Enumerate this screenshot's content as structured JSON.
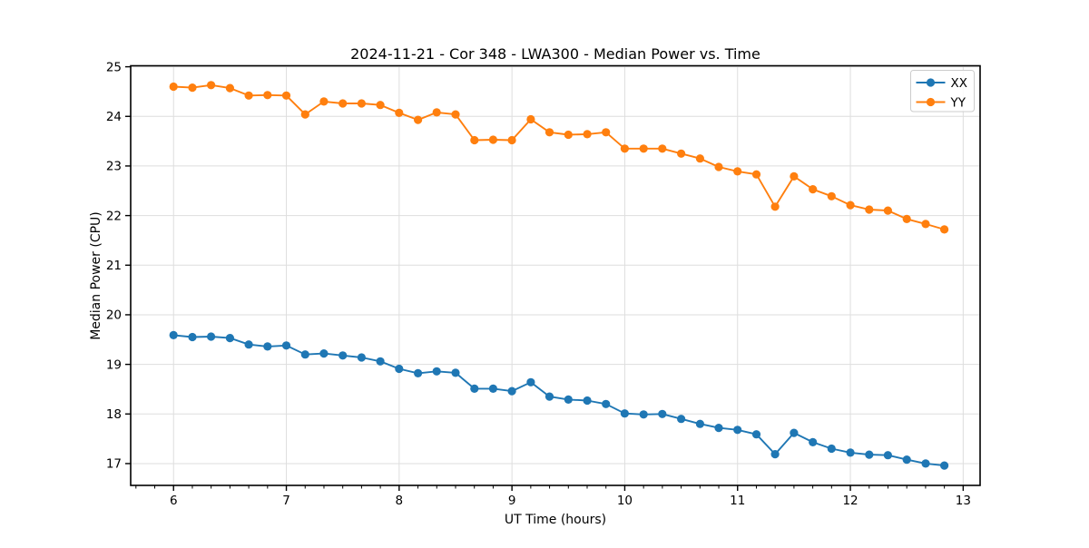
{
  "chart_data": {
    "type": "line",
    "title": "2024-11-21 - Cor 348 - LWA300 - Median Power vs. Time",
    "xlabel": "UT Time (hours)",
    "ylabel": "Median Power (CPU)",
    "xlim": [
      5.62,
      13.15
    ],
    "ylim": [
      16.56,
      25.02
    ],
    "x_ticks": [
      6,
      7,
      8,
      9,
      10,
      11,
      12,
      13
    ],
    "y_ticks": [
      17,
      18,
      19,
      20,
      21,
      22,
      23,
      24,
      25
    ],
    "x_minor_per_major": 6,
    "grid": true,
    "grid_color": "#dedede",
    "legend_position": "upper right",
    "x": [
      6.0,
      6.167,
      6.333,
      6.5,
      6.667,
      6.833,
      7.0,
      7.167,
      7.333,
      7.5,
      7.667,
      7.833,
      8.0,
      8.167,
      8.333,
      8.5,
      8.667,
      8.833,
      9.0,
      9.167,
      9.333,
      9.5,
      9.667,
      9.833,
      10.0,
      10.167,
      10.333,
      10.5,
      10.667,
      10.833,
      11.0,
      11.167,
      11.333,
      11.5,
      11.667,
      11.833,
      12.0,
      12.167,
      12.333,
      12.5,
      12.667,
      12.833
    ],
    "series": [
      {
        "name": "XX",
        "color": "#1f77b4",
        "values": [
          19.59,
          19.55,
          19.56,
          19.53,
          19.4,
          19.36,
          19.38,
          19.2,
          19.22,
          19.18,
          19.14,
          19.06,
          18.91,
          18.82,
          18.86,
          18.83,
          18.51,
          18.51,
          18.46,
          18.64,
          18.35,
          18.29,
          18.27,
          18.2,
          18.01,
          17.99,
          18.0,
          17.9,
          17.8,
          17.72,
          17.68,
          17.59,
          17.19,
          17.62,
          17.43,
          17.3,
          17.22,
          17.18,
          17.17,
          17.08,
          17.0,
          16.96
        ]
      },
      {
        "name": "YY",
        "color": "#ff7f0e",
        "values": [
          24.6,
          24.58,
          24.63,
          24.57,
          24.42,
          24.43,
          24.42,
          24.04,
          24.3,
          24.26,
          24.26,
          24.23,
          24.07,
          23.93,
          24.08,
          24.04,
          23.52,
          23.53,
          23.52,
          23.94,
          23.68,
          23.63,
          23.64,
          23.68,
          23.35,
          23.35,
          23.35,
          23.25,
          23.15,
          22.98,
          22.89,
          22.83,
          22.18,
          22.79,
          22.53,
          22.39,
          22.21,
          22.12,
          22.1,
          21.93,
          21.83,
          21.72
        ]
      }
    ]
  }
}
